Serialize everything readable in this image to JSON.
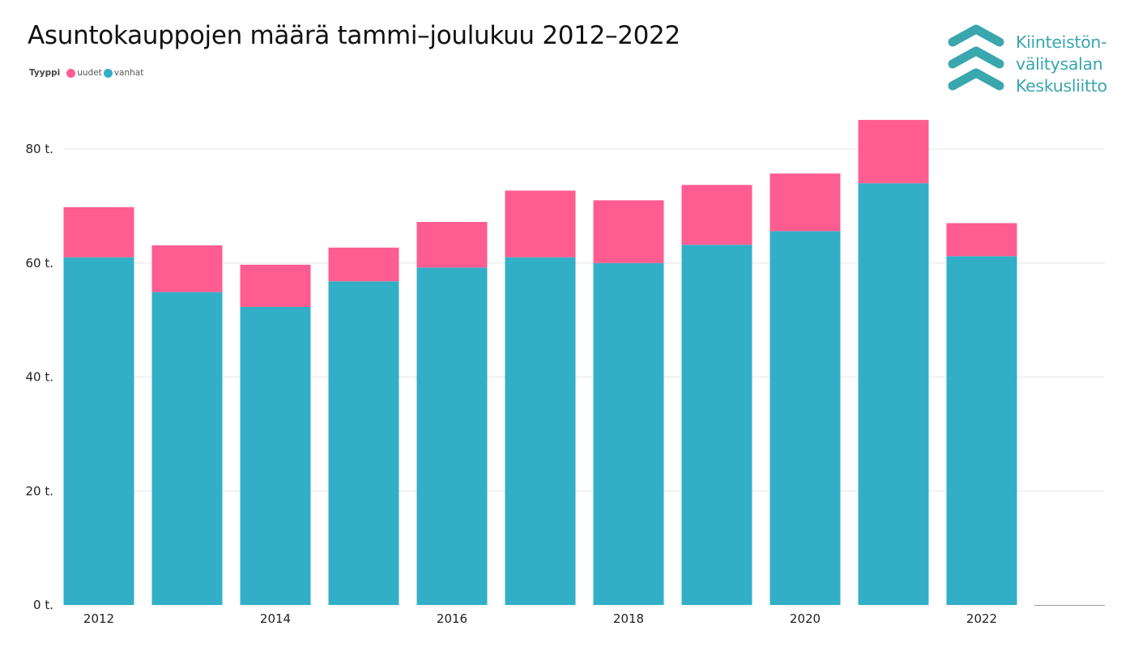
{
  "title": "Asuntokauppojen määrä tammi–joulukuu 2012–2022",
  "legend": {
    "title": "Tyyppi",
    "items": [
      {
        "label": "uudet",
        "color": "#ff5c91"
      },
      {
        "label": "vanhat",
        "color": "#32afc7"
      }
    ]
  },
  "logo": {
    "lines": [
      "Kiinteistön-",
      "välitysalan",
      "Keskusliitto"
    ],
    "color": "#3aa6ad",
    "icon": "chevron-up-stack-icon"
  },
  "chart_data": {
    "type": "bar",
    "stacked": true,
    "categories": [
      "2012",
      "2013",
      "2014",
      "2015",
      "2016",
      "2017",
      "2018",
      "2019",
      "2020",
      "2021",
      "2022"
    ],
    "x_tick_labels": [
      "2012",
      "2014",
      "2016",
      "2018",
      "2020",
      "2022"
    ],
    "series": [
      {
        "name": "vanhat",
        "color": "#32afc7",
        "values": [
          61000,
          54900,
          52300,
          56800,
          59200,
          61000,
          60000,
          63200,
          65600,
          74000,
          61200
        ]
      },
      {
        "name": "uudet",
        "color": "#ff5c91",
        "values": [
          8800,
          8200,
          7400,
          5900,
          8000,
          11700,
          11000,
          10500,
          10100,
          11100,
          5800
        ]
      }
    ],
    "y_ticks": [
      0,
      20000,
      40000,
      60000,
      80000
    ],
    "y_tick_labels": [
      "0 t.",
      "20 t.",
      "40 t.",
      "60 t.",
      "80 t."
    ],
    "ylim": [
      0,
      85000
    ],
    "grid": true,
    "legend_position": "top-left"
  }
}
